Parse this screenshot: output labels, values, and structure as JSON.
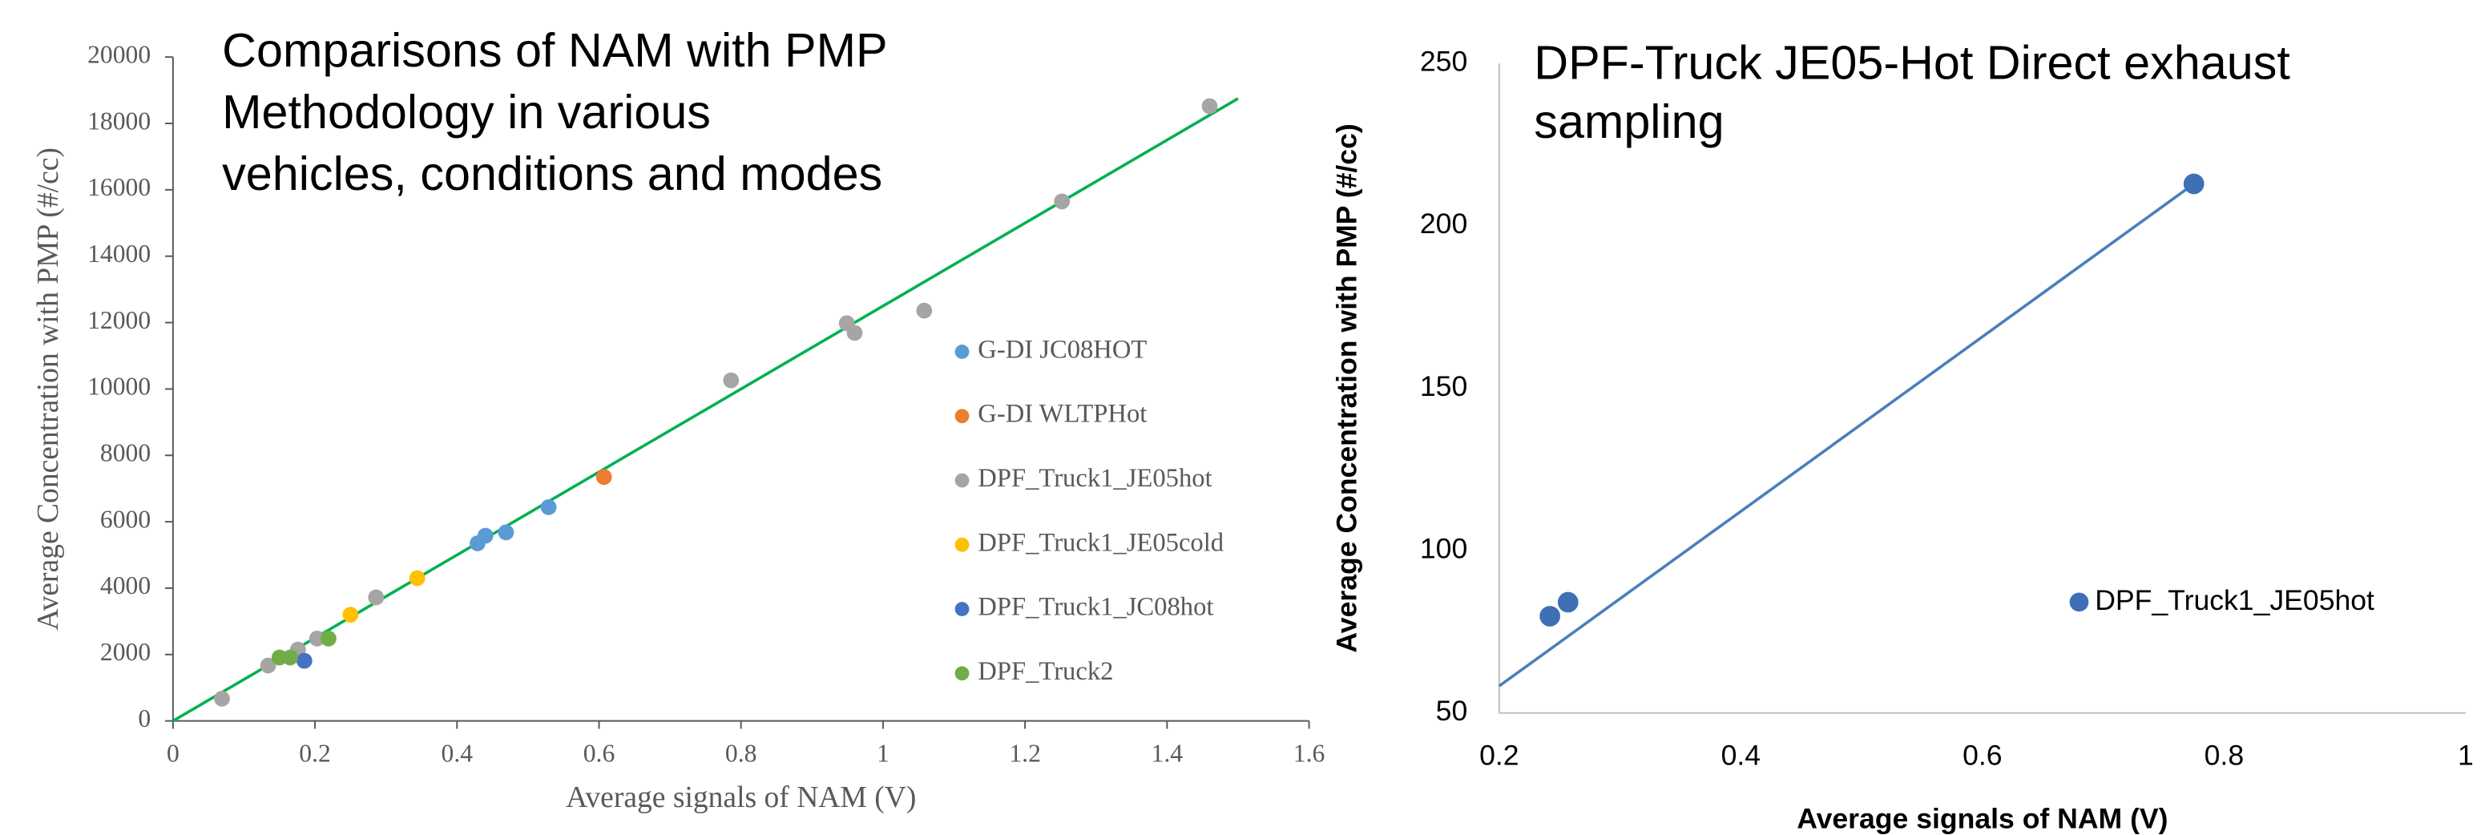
{
  "chart_data": [
    {
      "type": "scatter",
      "title": [
        "Comparisons of NAM with PMP",
        "Methodology  in various",
        "vehicles, conditions and modes"
      ],
      "x_label": "Average signals of NAM (V)",
      "y_label": "Average Concentration with PMP (#/cc)",
      "xlim": [
        0,
        1.6
      ],
      "xticks": [
        0,
        0.2,
        0.4,
        0.6,
        0.8,
        1,
        1.2,
        1.4,
        1.6
      ],
      "ylim": [
        0,
        20000
      ],
      "yticks": [
        0,
        2000,
        4000,
        6000,
        8000,
        10000,
        12000,
        14000,
        16000,
        18000,
        20000
      ],
      "series": [
        {
          "name": "G-DI JC08HOT",
          "color": "#5b9bd5",
          "x": [
            0.429,
            0.44,
            0.469,
            0.529
          ],
          "y": [
            5350,
            5580,
            5680,
            6440
          ]
        },
        {
          "name": "G-DI WLTPHot",
          "color": "#ed7d31",
          "x": [
            0.607
          ],
          "y": [
            7350
          ]
        },
        {
          "name": "DPF_Truck1_JE05hot",
          "color": "#a5a5a5",
          "x": [
            0.069,
            0.134,
            0.176,
            0.203,
            0.286,
            0.786,
            0.949,
            0.96,
            1.058,
            1.252,
            1.46
          ],
          "y": [
            670,
            1670,
            2150,
            2480,
            3720,
            10260,
            11980,
            11690,
            12360,
            15650,
            18520
          ]
        },
        {
          "name": "DPF_Truck1_JE05cold",
          "color": "#ffc000",
          "x": [
            0.25,
            0.344
          ],
          "y": [
            3200,
            4300
          ]
        },
        {
          "name": "DPF_Truck1_JC08hot",
          "color": "#4472c4",
          "x": [
            0.185
          ],
          "y": [
            1810
          ]
        },
        {
          "name": "DPF_Truck2",
          "color": "#70ad47",
          "x": [
            0.15,
            0.165,
            0.219
          ],
          "y": [
            1910,
            1910,
            2480
          ]
        }
      ],
      "trendline": {
        "color": "#00b050",
        "x": [
          0,
          1.5
        ],
        "y": [
          0,
          18750
        ]
      }
    },
    {
      "type": "scatter",
      "title": [
        "DPF-Truck JE05-Hot Direct exhaust",
        "sampling"
      ],
      "x_label": "Average signals of NAM (V)",
      "y_label": "Average Concentration with PMP (#/cc)",
      "xlim": [
        0.2,
        1
      ],
      "xticks": [
        0.2,
        0.4,
        0.6,
        0.8,
        1
      ],
      "ylim": [
        50,
        250
      ],
      "yticks": [
        50,
        100,
        150,
        200,
        250
      ],
      "series": [
        {
          "name": "DPF_Truck1_JE05hot",
          "color": "#3f6fb5",
          "x": [
            0.242,
            0.257,
            0.775
          ],
          "y": [
            79.8,
            84.1,
            212.9
          ]
        }
      ],
      "trendline": {
        "color": "#4a7ebb",
        "x": [
          0.2,
          0.775
        ],
        "y": [
          58.3,
          212.9
        ]
      }
    }
  ]
}
